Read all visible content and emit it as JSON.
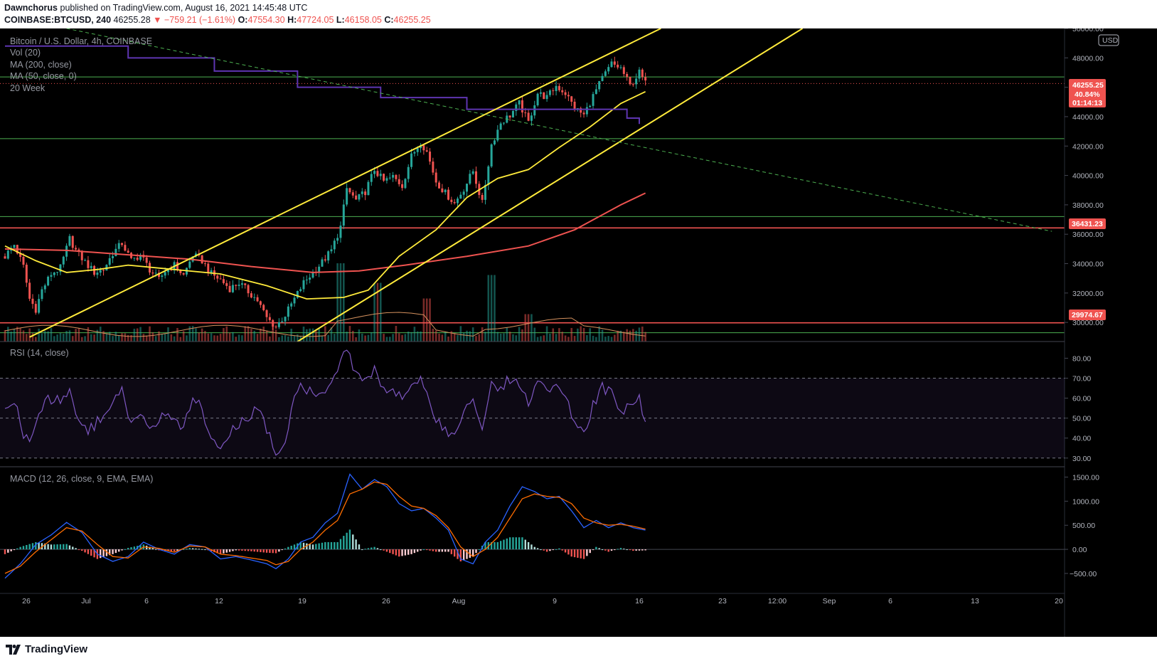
{
  "header": {
    "author": "Dawnchorus",
    "published": "published on TradingView.com, August 16, 2021 14:45:48 UTC",
    "symbol": "COINBASE:BTCUSD, 240",
    "last": "46255.28",
    "change_arrow": "▼",
    "change": "−759.21 (−1.61%)",
    "open_label": "O:",
    "open": "47554.30",
    "high_label": "H:",
    "high": "47724.05",
    "low_label": "L:",
    "low": "46158.05",
    "close_label": "C:",
    "close": "46255.25"
  },
  "legend": {
    "title": "Bitcoin / U.S. Dollar, 4h, COINBASE",
    "items": [
      "Vol (20)",
      "MA (200, close)",
      "MA (50, close, 0)",
      "20 Week"
    ],
    "rsi": "RSI (14, close)",
    "macd": "MACD (12, 26, close, 9, EMA, EMA)",
    "currency": "USD"
  },
  "price_tags": {
    "last_price": "46255.25",
    "last_pct": "40.84%",
    "countdown": "01:14:13",
    "resistance": "36431.23",
    "support": "29974.67"
  },
  "footer": {
    "brand": "TradingView"
  },
  "colors": {
    "up": "#26a69a",
    "down": "#ef5350",
    "channel": "#ffeb3b",
    "ma200": "#ef5350",
    "ma50": "#ffeb3b",
    "week20": "#5e35b1",
    "level": "#4caf50",
    "rsi": "#7e57c2",
    "macd": "#2962ff",
    "signal": "#ff6d00"
  },
  "chart_data": [
    {
      "type": "candlestick",
      "title": "Bitcoin / U.S. Dollar, 4h, COINBASE",
      "x_ticks": [
        "26",
        "Jul",
        "6",
        "12",
        "19",
        "26",
        "Aug",
        "9",
        "16",
        "23",
        "12:00",
        "Sep",
        "6",
        "13",
        "20"
      ],
      "y_ticks": [
        50000,
        48000,
        46000,
        44000,
        42000,
        40000,
        38000,
        36000,
        34000,
        32000,
        30000
      ],
      "ylim": [
        28700,
        50000
      ],
      "close_path": [
        [
          0,
          34500
        ],
        [
          3,
          35300
        ],
        [
          6,
          33800
        ],
        [
          8,
          31600
        ],
        [
          10,
          30900
        ],
        [
          12,
          32200
        ],
        [
          15,
          33300
        ],
        [
          18,
          33700
        ],
        [
          21,
          35700
        ],
        [
          23,
          34900
        ],
        [
          26,
          34100
        ],
        [
          29,
          33400
        ],
        [
          32,
          33600
        ],
        [
          35,
          34700
        ],
        [
          38,
          35400
        ],
        [
          41,
          34200
        ],
        [
          44,
          34600
        ],
        [
          47,
          33600
        ],
        [
          50,
          32900
        ],
        [
          52,
          33500
        ],
        [
          55,
          33900
        ],
        [
          58,
          33200
        ],
        [
          61,
          34600
        ],
        [
          64,
          34200
        ],
        [
          67,
          33300
        ],
        [
          70,
          32900
        ],
        [
          73,
          32300
        ],
        [
          76,
          32700
        ],
        [
          79,
          32100
        ],
        [
          82,
          31500
        ],
        [
          85,
          30300
        ],
        [
          88,
          29700
        ],
        [
          91,
          30500
        ],
        [
          94,
          31600
        ],
        [
          97,
          32700
        ],
        [
          100,
          33400
        ],
        [
          103,
          34100
        ],
        [
          106,
          34900
        ],
        [
          109,
          36500
        ],
        [
          111,
          39100
        ],
        [
          114,
          38300
        ],
        [
          117,
          38900
        ],
        [
          120,
          40400
        ],
        [
          123,
          39600
        ],
        [
          126,
          39900
        ],
        [
          129,
          39300
        ],
        [
          132,
          41300
        ],
        [
          135,
          42300
        ],
        [
          137,
          41600
        ],
        [
          140,
          39600
        ],
        [
          143,
          38800
        ],
        [
          146,
          38100
        ],
        [
          149,
          39100
        ],
        [
          152,
          40300
        ],
        [
          155,
          38100
        ],
        [
          158,
          42100
        ],
        [
          161,
          43600
        ],
        [
          164,
          44100
        ],
        [
          167,
          44900
        ],
        [
          170,
          43600
        ],
        [
          173,
          45600
        ],
        [
          176,
          45300
        ],
        [
          179,
          46100
        ],
        [
          182,
          45600
        ],
        [
          185,
          44600
        ],
        [
          188,
          44100
        ],
        [
          191,
          45400
        ],
        [
          194,
          46600
        ],
        [
          197,
          47600
        ],
        [
          200,
          47300
        ],
        [
          203,
          46100
        ],
        [
          206,
          47000
        ],
        [
          208,
          46255
        ]
      ],
      "volume_spikes": [
        [
          109,
          1.0
        ],
        [
          121,
          0.75
        ],
        [
          137,
          0.55
        ],
        [
          158,
          0.85
        ],
        [
          170,
          0.35
        ]
      ],
      "ma200_path": [
        [
          0,
          35000
        ],
        [
          20,
          34900
        ],
        [
          40,
          34600
        ],
        [
          60,
          34300
        ],
        [
          80,
          33800
        ],
        [
          100,
          33400
        ],
        [
          115,
          33500
        ],
        [
          130,
          33900
        ],
        [
          150,
          34500
        ],
        [
          170,
          35200
        ],
        [
          185,
          36300
        ],
        [
          200,
          38000
        ],
        [
          208,
          38800
        ]
      ],
      "ma50_path": [
        [
          0,
          35200
        ],
        [
          10,
          34200
        ],
        [
          20,
          33400
        ],
        [
          30,
          33600
        ],
        [
          40,
          33900
        ],
        [
          55,
          33600
        ],
        [
          70,
          33300
        ],
        [
          85,
          32500
        ],
        [
          98,
          31600
        ],
        [
          110,
          31700
        ],
        [
          118,
          32200
        ],
        [
          128,
          34500
        ],
        [
          140,
          36300
        ],
        [
          150,
          38500
        ],
        [
          160,
          39800
        ],
        [
          170,
          40400
        ],
        [
          180,
          41900
        ],
        [
          190,
          43300
        ],
        [
          200,
          44900
        ],
        [
          208,
          45700
        ]
      ],
      "week20_steps": [
        [
          0,
          48800
        ],
        [
          40,
          48000
        ],
        [
          68,
          47100
        ],
        [
          95,
          46000
        ],
        [
          122,
          45300
        ],
        [
          150,
          44500
        ],
        [
          177,
          44500
        ],
        [
          202,
          43900
        ],
        [
          206,
          43500
        ]
      ],
      "channel_upper": [
        [
          8,
          29000
        ],
        [
          213,
          50000
        ]
      ],
      "channel_lower": [
        [
          95,
          28700
        ],
        [
          259,
          50000
        ]
      ],
      "dashed_trend": [
        [
          20,
          50000
        ],
        [
          340,
          36200
        ]
      ],
      "levels_green": [
        46700,
        42500,
        37200,
        29300
      ],
      "levels_red": [
        36431.23,
        29974.67
      ],
      "last_price": 46255.25
    },
    {
      "type": "line",
      "title": "RSI (14, close)",
      "y_ticks": [
        80,
        70,
        60,
        50,
        40,
        30
      ],
      "ylim": [
        26,
        88
      ],
      "band": [
        30,
        70
      ],
      "values": [
        [
          0,
          52
        ],
        [
          3,
          60
        ],
        [
          6,
          42
        ],
        [
          8,
          36
        ],
        [
          10,
          46
        ],
        [
          13,
          58
        ],
        [
          16,
          60
        ],
        [
          19,
          60
        ],
        [
          21,
          64
        ],
        [
          23,
          52
        ],
        [
          26,
          44
        ],
        [
          29,
          46
        ],
        [
          32,
          52
        ],
        [
          35,
          58
        ],
        [
          38,
          64
        ],
        [
          41,
          46
        ],
        [
          44,
          52
        ],
        [
          47,
          44
        ],
        [
          50,
          46
        ],
        [
          52,
          54
        ],
        [
          55,
          48
        ],
        [
          58,
          44
        ],
        [
          61,
          60
        ],
        [
          64,
          54
        ],
        [
          67,
          40
        ],
        [
          70,
          36
        ],
        [
          73,
          42
        ],
        [
          76,
          46
        ],
        [
          79,
          50
        ],
        [
          82,
          56
        ],
        [
          85,
          44
        ],
        [
          88,
          32
        ],
        [
          91,
          38
        ],
        [
          94,
          62
        ],
        [
          97,
          66
        ],
        [
          100,
          63
        ],
        [
          103,
          64
        ],
        [
          106,
          68
        ],
        [
          109,
          78
        ],
        [
          111,
          86
        ],
        [
          114,
          71
        ],
        [
          117,
          68
        ],
        [
          120,
          76
        ],
        [
          123,
          65
        ],
        [
          126,
          66
        ],
        [
          129,
          58
        ],
        [
          132,
          64
        ],
        [
          135,
          68
        ],
        [
          137,
          63
        ],
        [
          140,
          50
        ],
        [
          143,
          44
        ],
        [
          146,
          40
        ],
        [
          149,
          52
        ],
        [
          152,
          60
        ],
        [
          155,
          44
        ],
        [
          158,
          66
        ],
        [
          161,
          66
        ],
        [
          164,
          70
        ],
        [
          167,
          68
        ],
        [
          170,
          58
        ],
        [
          173,
          70
        ],
        [
          176,
          64
        ],
        [
          179,
          64
        ],
        [
          182,
          60
        ],
        [
          185,
          48
        ],
        [
          188,
          44
        ],
        [
          191,
          56
        ],
        [
          194,
          66
        ],
        [
          197,
          62
        ],
        [
          200,
          52
        ],
        [
          203,
          58
        ],
        [
          206,
          60
        ],
        [
          208,
          49
        ]
      ]
    },
    {
      "type": "line",
      "title": "MACD (12, 26, close, 9, EMA, EMA)",
      "y_ticks": [
        1500,
        1000,
        500,
        0,
        -500
      ],
      "ylim": [
        -900,
        1700
      ],
      "macd": [
        [
          0,
          -600
        ],
        [
          5,
          -300
        ],
        [
          10,
          100
        ],
        [
          15,
          300
        ],
        [
          20,
          560
        ],
        [
          25,
          350
        ],
        [
          30,
          -100
        ],
        [
          35,
          -250
        ],
        [
          40,
          -150
        ],
        [
          45,
          150
        ],
        [
          50,
          0
        ],
        [
          55,
          -100
        ],
        [
          60,
          100
        ],
        [
          65,
          50
        ],
        [
          70,
          -200
        ],
        [
          75,
          -150
        ],
        [
          80,
          -220
        ],
        [
          85,
          -300
        ],
        [
          88,
          -400
        ],
        [
          92,
          -200
        ],
        [
          96,
          150
        ],
        [
          100,
          250
        ],
        [
          104,
          550
        ],
        [
          108,
          750
        ],
        [
          112,
          1560
        ],
        [
          116,
          1250
        ],
        [
          120,
          1450
        ],
        [
          124,
          1300
        ],
        [
          128,
          950
        ],
        [
          132,
          800
        ],
        [
          136,
          850
        ],
        [
          140,
          650
        ],
        [
          144,
          400
        ],
        [
          148,
          -200
        ],
        [
          152,
          -300
        ],
        [
          156,
          150
        ],
        [
          160,
          400
        ],
        [
          164,
          900
        ],
        [
          168,
          1300
        ],
        [
          172,
          1200
        ],
        [
          176,
          1050
        ],
        [
          180,
          1100
        ],
        [
          184,
          800
        ],
        [
          188,
          450
        ],
        [
          192,
          600
        ],
        [
          196,
          450
        ],
        [
          200,
          550
        ],
        [
          204,
          450
        ],
        [
          208,
          400
        ]
      ],
      "signal": [
        [
          0,
          -500
        ],
        [
          5,
          -350
        ],
        [
          10,
          -50
        ],
        [
          15,
          200
        ],
        [
          20,
          450
        ],
        [
          25,
          380
        ],
        [
          30,
          100
        ],
        [
          35,
          -150
        ],
        [
          40,
          -180
        ],
        [
          45,
          50
        ],
        [
          50,
          20
        ],
        [
          55,
          -60
        ],
        [
          60,
          70
        ],
        [
          65,
          50
        ],
        [
          70,
          -100
        ],
        [
          75,
          -130
        ],
        [
          80,
          -180
        ],
        [
          85,
          -230
        ],
        [
          88,
          -320
        ],
        [
          92,
          -250
        ],
        [
          96,
          0
        ],
        [
          100,
          150
        ],
        [
          104,
          400
        ],
        [
          108,
          600
        ],
        [
          112,
          1150
        ],
        [
          116,
          1250
        ],
        [
          120,
          1400
        ],
        [
          124,
          1350
        ],
        [
          128,
          1100
        ],
        [
          132,
          900
        ],
        [
          136,
          850
        ],
        [
          140,
          700
        ],
        [
          144,
          450
        ],
        [
          148,
          50
        ],
        [
          152,
          -150
        ],
        [
          156,
          0
        ],
        [
          160,
          250
        ],
        [
          164,
          650
        ],
        [
          168,
          1050
        ],
        [
          172,
          1150
        ],
        [
          176,
          1100
        ],
        [
          180,
          1080
        ],
        [
          184,
          950
        ],
        [
          188,
          650
        ],
        [
          192,
          550
        ],
        [
          196,
          500
        ],
        [
          200,
          520
        ],
        [
          204,
          480
        ],
        [
          208,
          420
        ]
      ]
    }
  ]
}
